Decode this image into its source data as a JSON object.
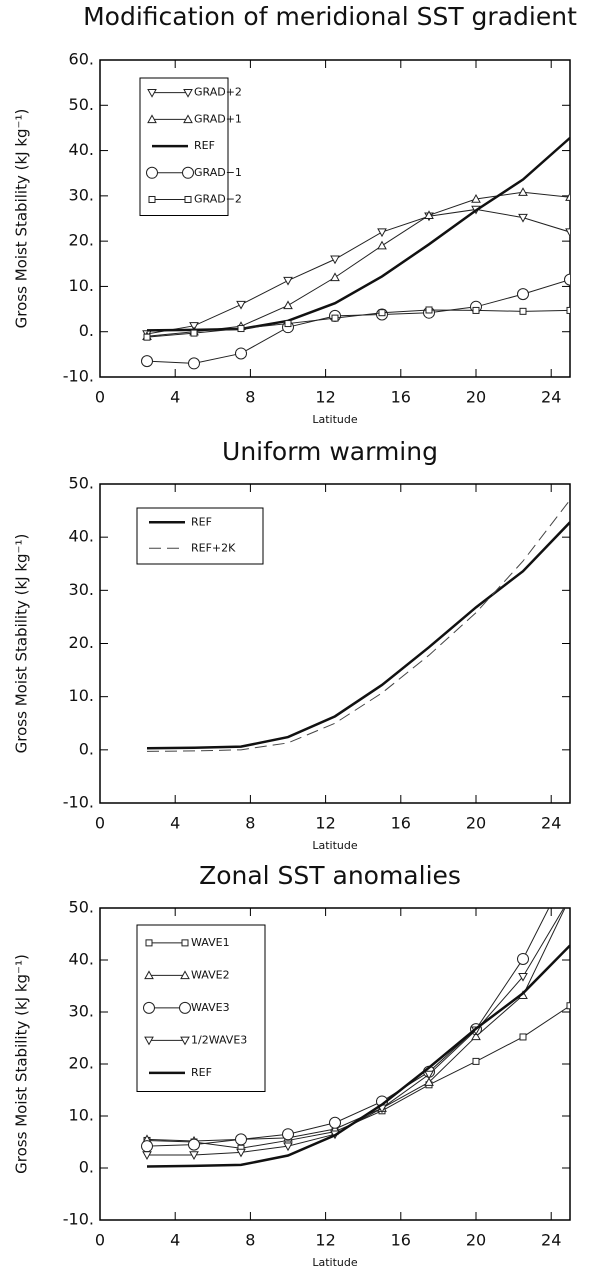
{
  "chart_data": [
    {
      "type": "line",
      "title": "Modification of meridional SST gradient",
      "x_label": "Latitude",
      "y_label": "Gross Moist Stability (kJ kg⁻¹)",
      "xlim": [
        0,
        25
      ],
      "xticks": [
        0,
        4,
        8,
        12,
        16,
        20,
        24
      ],
      "ylim": [
        -10,
        60
      ],
      "yticks": [
        {
          "value": -10,
          "label": "-10."
        },
        {
          "value": 0,
          "label": "0."
        },
        {
          "value": 10,
          "label": "10."
        },
        {
          "value": 20,
          "label": "20."
        },
        {
          "value": 30,
          "label": "30."
        },
        {
          "value": 40,
          "label": "40."
        },
        {
          "value": 50,
          "label": "50."
        },
        {
          "value": 60,
          "label": "60."
        }
      ],
      "x": [
        2.5,
        5,
        7.5,
        10,
        12.5,
        15,
        17.5,
        20,
        22.5,
        25
      ],
      "series": [
        {
          "name": "GRAD+2",
          "color": "#222222",
          "marker": "triangle-down",
          "linewidth": 1,
          "values": [
            -0.5,
            1.3,
            6,
            11.3,
            16,
            22,
            25.5,
            27,
            25.2,
            22
          ]
        },
        {
          "name": "GRAD+1",
          "color": "#222222",
          "marker": "triangle-up",
          "linewidth": 1,
          "values": [
            -1,
            0,
            1.2,
            5.8,
            12,
            19,
            25.7,
            29.3,
            30.8,
            29.7
          ]
        },
        {
          "name": "REF",
          "color": "#111111",
          "marker": "none",
          "linewidth": 2.5,
          "values": [
            0.3,
            0.4,
            0.6,
            2.4,
            6.3,
            12.2,
            19.3,
            26.8,
            33.6,
            42.8
          ]
        },
        {
          "name": "GRAD−1",
          "color": "#222222",
          "marker": "circle",
          "linewidth": 1,
          "values": [
            -6.5,
            -7,
            -4.8,
            1,
            3.5,
            3.8,
            4.2,
            5.5,
            8.3,
            11.5
          ]
        },
        {
          "name": "GRAD−2",
          "color": "#222222",
          "marker": "square",
          "linewidth": 1,
          "values": [
            -1.2,
            -0.3,
            0.7,
            1.8,
            3,
            4.2,
            4.8,
            4.7,
            4.5,
            4.7
          ]
        }
      ]
    },
    {
      "type": "line",
      "title": "Uniform warming",
      "x_label": "Latitude",
      "y_label": "Gross Moist Stability (kJ kg⁻¹)",
      "xlim": [
        0,
        25
      ],
      "xticks": [
        0,
        4,
        8,
        12,
        16,
        20,
        24
      ],
      "ylim": [
        -10,
        50
      ],
      "yticks": [
        {
          "value": -10,
          "label": "-10."
        },
        {
          "value": 0,
          "label": "0."
        },
        {
          "value": 10,
          "label": "10."
        },
        {
          "value": 20,
          "label": "20."
        },
        {
          "value": 30,
          "label": "30."
        },
        {
          "value": 40,
          "label": "40."
        },
        {
          "value": 50,
          "label": "50."
        }
      ],
      "x": [
        2.5,
        5,
        7.5,
        10,
        12.5,
        15,
        17.5,
        20,
        22.5,
        25
      ],
      "series": [
        {
          "name": "REF",
          "color": "#111111",
          "marker": "none",
          "linewidth": 2.5,
          "values": [
            0.3,
            0.4,
            0.6,
            2.4,
            6.3,
            12.2,
            19.3,
            26.8,
            33.6,
            42.8
          ]
        },
        {
          "name": "REF+2K",
          "color": "#444444",
          "marker": "none",
          "linewidth": 1,
          "dashed": true,
          "values": [
            -0.3,
            -0.2,
            0,
            1.3,
            5,
            10.7,
            17.8,
            25.8,
            35.5,
            47
          ]
        }
      ]
    },
    {
      "type": "line",
      "title": "Zonal SST anomalies",
      "x_label": "Latitude",
      "y_label": "Gross Moist Stability (kJ kg⁻¹)",
      "xlim": [
        0,
        25
      ],
      "xticks": [
        0,
        4,
        8,
        12,
        16,
        20,
        24
      ],
      "ylim": [
        -10,
        50
      ],
      "yticks": [
        {
          "value": -10,
          "label": "-10."
        },
        {
          "value": 0,
          "label": "0."
        },
        {
          "value": 10,
          "label": "10."
        },
        {
          "value": 20,
          "label": "20."
        },
        {
          "value": 30,
          "label": "30."
        },
        {
          "value": 40,
          "label": "40."
        },
        {
          "value": 50,
          "label": "50."
        }
      ],
      "x": [
        2.5,
        5,
        7.5,
        10,
        12.5,
        15,
        17.5,
        20,
        22.5,
        25
      ],
      "series": [
        {
          "name": "WAVE1",
          "color": "#222222",
          "marker": "square",
          "linewidth": 1,
          "values": [
            5.3,
            5,
            3.8,
            5.3,
            7,
            11,
            16,
            20.5,
            25.2,
            31.2
          ]
        },
        {
          "name": "WAVE2",
          "color": "#222222",
          "marker": "triangle-up",
          "linewidth": 1,
          "values": [
            5.5,
            5.2,
            5.5,
            5.8,
            7.5,
            11.5,
            16.5,
            25.3,
            33.2,
            52
          ]
        },
        {
          "name": "WAVE3",
          "color": "#222222",
          "marker": "circle",
          "linewidth": 1,
          "values": [
            4.2,
            4.5,
            5.5,
            6.5,
            8.7,
            12.8,
            18.5,
            26.7,
            40.2,
            58
          ]
        },
        {
          "name": "1/2WAVE3",
          "color": "#222222",
          "marker": "triangle-down",
          "linewidth": 1,
          "values": [
            2.5,
            2.5,
            3,
            4.2,
            6.5,
            11.5,
            18,
            26.5,
            36.8,
            52
          ]
        },
        {
          "name": "REF",
          "color": "#111111",
          "marker": "none",
          "linewidth": 2.5,
          "values": [
            0.3,
            0.4,
            0.6,
            2.4,
            6.3,
            12.2,
            19.3,
            26.8,
            33.6,
            42.8
          ]
        }
      ]
    }
  ]
}
